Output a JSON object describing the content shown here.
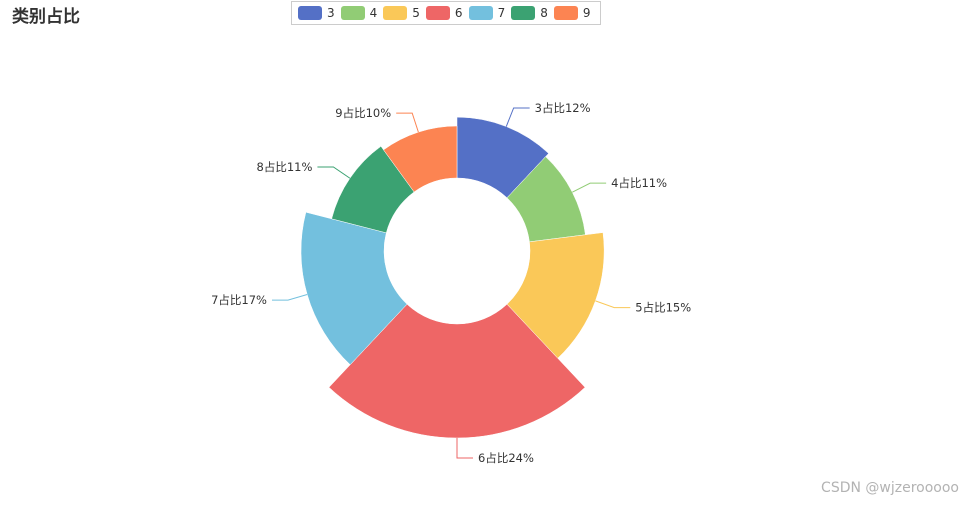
{
  "title": "类别占比",
  "watermark": "CSDN @wjzerooooo",
  "legend": [
    {
      "name": "3",
      "color": "#5470c6"
    },
    {
      "name": "4",
      "color": "#91cc75"
    },
    {
      "name": "5",
      "color": "#fac858"
    },
    {
      "name": "6",
      "color": "#ee6666"
    },
    {
      "name": "7",
      "color": "#73c0de"
    },
    {
      "name": "8",
      "color": "#3ba272"
    },
    {
      "name": "9",
      "color": "#fc8452"
    }
  ],
  "chart_data": {
    "type": "pie",
    "variant": "rose-radius",
    "title": "类别占比",
    "legend_position": "top-center",
    "slices": [
      {
        "category": "3",
        "percent": 12,
        "label": "3占比12%",
        "color": "#5470c6"
      },
      {
        "category": "4",
        "percent": 11,
        "label": "4占比11%",
        "color": "#91cc75"
      },
      {
        "category": "5",
        "percent": 15,
        "label": "5占比15%",
        "color": "#fac858"
      },
      {
        "category": "6",
        "percent": 24,
        "label": "6占比24%",
        "color": "#ee6666"
      },
      {
        "category": "7",
        "percent": 17,
        "label": "7占比17%",
        "color": "#73c0de"
      },
      {
        "category": "8",
        "percent": 11,
        "label": "8占比11%",
        "color": "#3ba272"
      },
      {
        "category": "9",
        "percent": 10,
        "label": "9占比10%",
        "color": "#fc8452"
      }
    ]
  }
}
